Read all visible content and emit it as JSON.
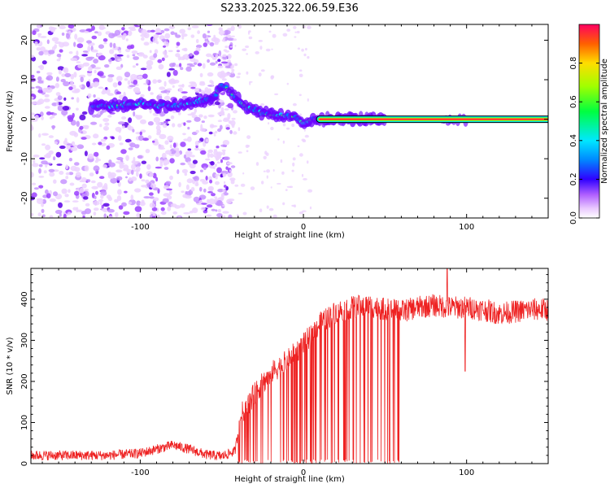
{
  "figure": {
    "title": "S233.2025.322.06.59.E36"
  },
  "colors": {
    "snr_line": "#ee2222",
    "frame": "#000000",
    "background": "#ffffff"
  },
  "chart_data": [
    {
      "type": "heatmap",
      "name": "spectrogram",
      "title": "",
      "xlabel": "Height of straight line (km)",
      "ylabel": "Frequency (Hz)",
      "xlim": [
        -167,
        150
      ],
      "ylim": [
        -25,
        24
      ],
      "xticks": [
        -100,
        0,
        100
      ],
      "xtick_labels": [
        "-100",
        "0",
        "100"
      ],
      "yticks": [
        -20,
        -10,
        0,
        10,
        20
      ],
      "ytick_labels": [
        "-20",
        "-10",
        "0",
        "10",
        "20"
      ],
      "ridge": {
        "x": [
          -130,
          -115,
          -100,
          -90,
          -80,
          -70,
          -60,
          -55,
          -50,
          -45,
          -40,
          -35,
          -30,
          -25,
          -20,
          -15,
          -10,
          -5,
          0,
          5,
          10,
          20,
          50,
          100,
          150
        ],
        "y": [
          3,
          3.5,
          4,
          3.5,
          3.3,
          4,
          5,
          5.5,
          9,
          7,
          5,
          3,
          2.5,
          1.5,
          1,
          0.8,
          1,
          0.5,
          -1,
          0,
          0,
          0,
          0,
          0,
          0
        ]
      },
      "noise_region_x": [
        -167,
        -55
      ],
      "carrier_x_range": [
        10,
        150
      ],
      "carrier_frequency": 0,
      "colorbar": {
        "label": "Normalized spectral amplitude",
        "range": [
          0.0,
          1.0
        ],
        "ticks": [
          0.0,
          0.2,
          0.4,
          0.6,
          0.8
        ],
        "tick_labels": [
          "0.0",
          "0.2",
          "0.4",
          "0.6",
          "0.8"
        ]
      }
    },
    {
      "type": "line",
      "name": "snr",
      "title": "",
      "xlabel": "Height of straight line (km)",
      "ylabel": "SNR (10 * v/v)",
      "xlim": [
        -167,
        150
      ],
      "ylim": [
        0,
        475
      ],
      "xticks": [
        -100,
        0,
        100
      ],
      "xtick_labels": [
        "-100",
        "0",
        "100"
      ],
      "yticks": [
        0,
        100,
        200,
        300,
        400
      ],
      "ytick_labels": [
        "0",
        "100",
        "200",
        "300",
        "400"
      ],
      "series": [
        {
          "name": "SNR",
          "profile_x": [
            -167,
            -120,
            -100,
            -90,
            -80,
            -70,
            -60,
            -50,
            -42,
            -38,
            -30,
            -20,
            -10,
            0,
            10,
            20,
            30,
            40,
            50,
            60,
            70,
            80,
            90,
            100,
            110,
            120,
            130,
            140,
            150
          ],
          "profile_y": [
            20,
            20,
            25,
            35,
            45,
            35,
            22,
            18,
            30,
            120,
            170,
            220,
            250,
            290,
            340,
            370,
            380,
            385,
            375,
            370,
            380,
            385,
            380,
            380,
            375,
            365,
            370,
            375,
            375
          ],
          "dropout_x_range": [
            -40,
            60
          ],
          "spikes": [
            {
              "x": 88,
              "y": 480
            },
            {
              "x": 99,
              "y": 225
            }
          ]
        }
      ]
    }
  ]
}
